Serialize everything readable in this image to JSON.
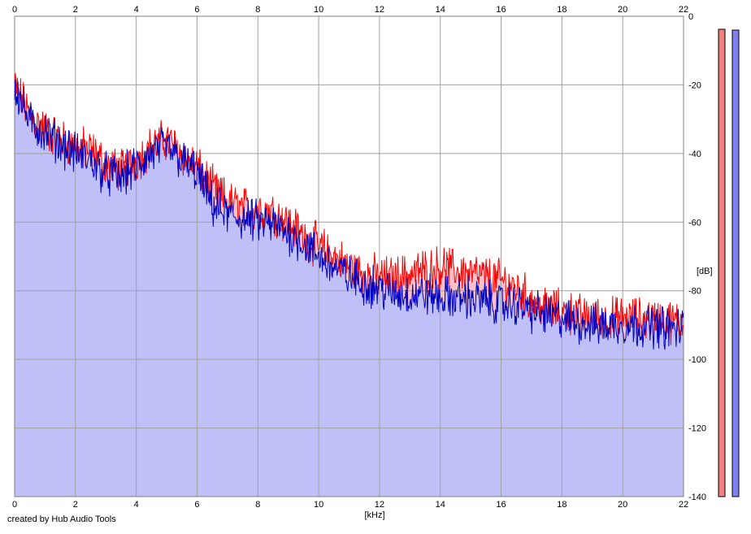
{
  "credit": "created by Hub Audio Tools",
  "colors": {
    "background": "#ffffff",
    "grid": "#a0a0a0",
    "fill": "#c0c0f8",
    "fill_diff": "#f8c0c8",
    "left_channel": "#ff0000",
    "right_channel": "#0000c0",
    "meter_left": "#f08080",
    "meter_right": "#8080f0"
  },
  "chart_data": {
    "type": "area",
    "xlabel": "[kHz]",
    "ylabel": "[dB]",
    "xlim": [
      0,
      22
    ],
    "ylim": [
      -140,
      0
    ],
    "x_ticks": [
      "0",
      "2",
      "4",
      "6",
      "8",
      "10",
      "12",
      "14",
      "16",
      "18",
      "20",
      "22"
    ],
    "y_ticks": [
      "0",
      "-20",
      "-40",
      "-60",
      "-80",
      "-100",
      "-120",
      "-140"
    ],
    "grid": true,
    "series": [
      {
        "color": "#ff0000",
        "x": [
          0,
          0.5,
          1,
          1.5,
          2,
          2.5,
          3,
          3.5,
          4,
          4.5,
          5,
          5.5,
          6,
          6.5,
          7,
          7.5,
          8,
          8.5,
          9,
          9.5,
          10,
          10.5,
          11,
          11.5,
          12,
          12.5,
          13,
          13.5,
          14,
          14.5,
          15,
          15.5,
          16,
          16.5,
          17,
          17.5,
          18,
          18.5,
          19,
          19.5,
          20,
          20.5,
          21,
          21.5,
          22
        ],
        "values": [
          -20,
          -29,
          -33,
          -36,
          -38,
          -39,
          -43,
          -45,
          -42,
          -38,
          -36,
          -40,
          -44,
          -50,
          -54,
          -56,
          -56,
          -57,
          -60,
          -64,
          -67,
          -70,
          -73,
          -75,
          -76,
          -76,
          -75,
          -74,
          -73,
          -74,
          -75,
          -76,
          -77,
          -79,
          -83,
          -85,
          -86,
          -87,
          -88,
          -88,
          -88,
          -88,
          -88,
          -89,
          -89
        ]
      },
      {
        "color": "#0000c0",
        "x": [
          0,
          0.5,
          1,
          1.5,
          2,
          2.5,
          3,
          3.5,
          4,
          4.5,
          5,
          5.5,
          6,
          6.5,
          7,
          7.5,
          8,
          8.5,
          9,
          9.5,
          10,
          10.5,
          11,
          11.5,
          12,
          12.5,
          13,
          13.5,
          14,
          14.5,
          15,
          15.5,
          16,
          16.5,
          17,
          17.5,
          18,
          18.5,
          19,
          19.5,
          20,
          20.5,
          21,
          21.5,
          22
        ],
        "values": [
          -20,
          -31,
          -34,
          -37,
          -40,
          -42,
          -46,
          -47,
          -44,
          -40,
          -38,
          -42,
          -46,
          -55,
          -58,
          -59,
          -60,
          -61,
          -63,
          -66,
          -70,
          -73,
          -76,
          -78,
          -79,
          -81,
          -81,
          -81,
          -82,
          -82,
          -82,
          -83,
          -84,
          -84,
          -86,
          -87,
          -88,
          -89,
          -90,
          -90,
          -90,
          -90,
          -90,
          -91,
          -91
        ]
      }
    ]
  }
}
